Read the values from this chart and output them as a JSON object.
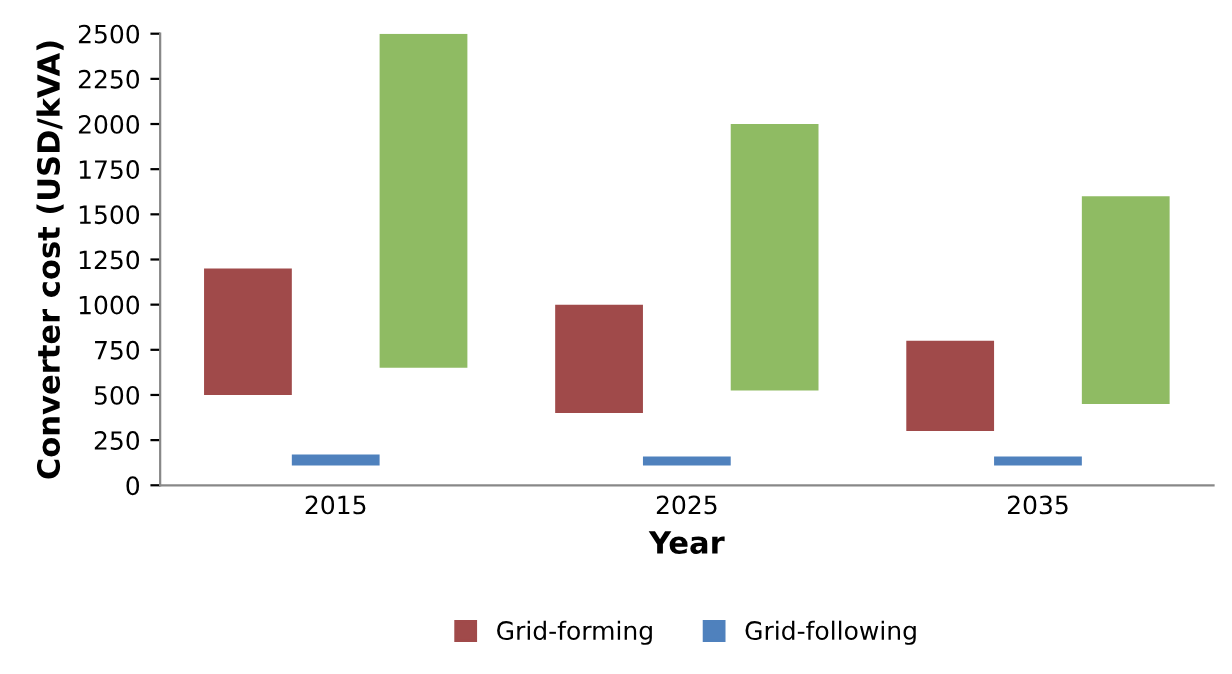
{
  "chart_data": {
    "type": "bar",
    "xlabel": "Year",
    "ylabel": "Converter cost (USD/kVA)",
    "categories": [
      "2015",
      "2025",
      "2035"
    ],
    "series": [
      {
        "name": "Grid-forming",
        "color": "#a04a4a",
        "base": [
          500,
          400,
          300
        ],
        "values": [
          700,
          600,
          500
        ]
      },
      {
        "name": "Grid-following",
        "color": "#4f81bd",
        "base": [
          110,
          110,
          110
        ],
        "values": [
          60,
          50,
          50
        ]
      },
      {
        "color": "#8fbb63",
        "base": [
          650,
          525,
          450
        ],
        "values": [
          1850,
          1475,
          1150
        ]
      }
    ],
    "ylim": [
      0,
      2500
    ],
    "yticks": [
      0,
      250,
      500,
      750,
      1000,
      1250,
      1500,
      1750,
      2000,
      2250,
      2500
    ],
    "grid": false,
    "legend": "bottom"
  }
}
